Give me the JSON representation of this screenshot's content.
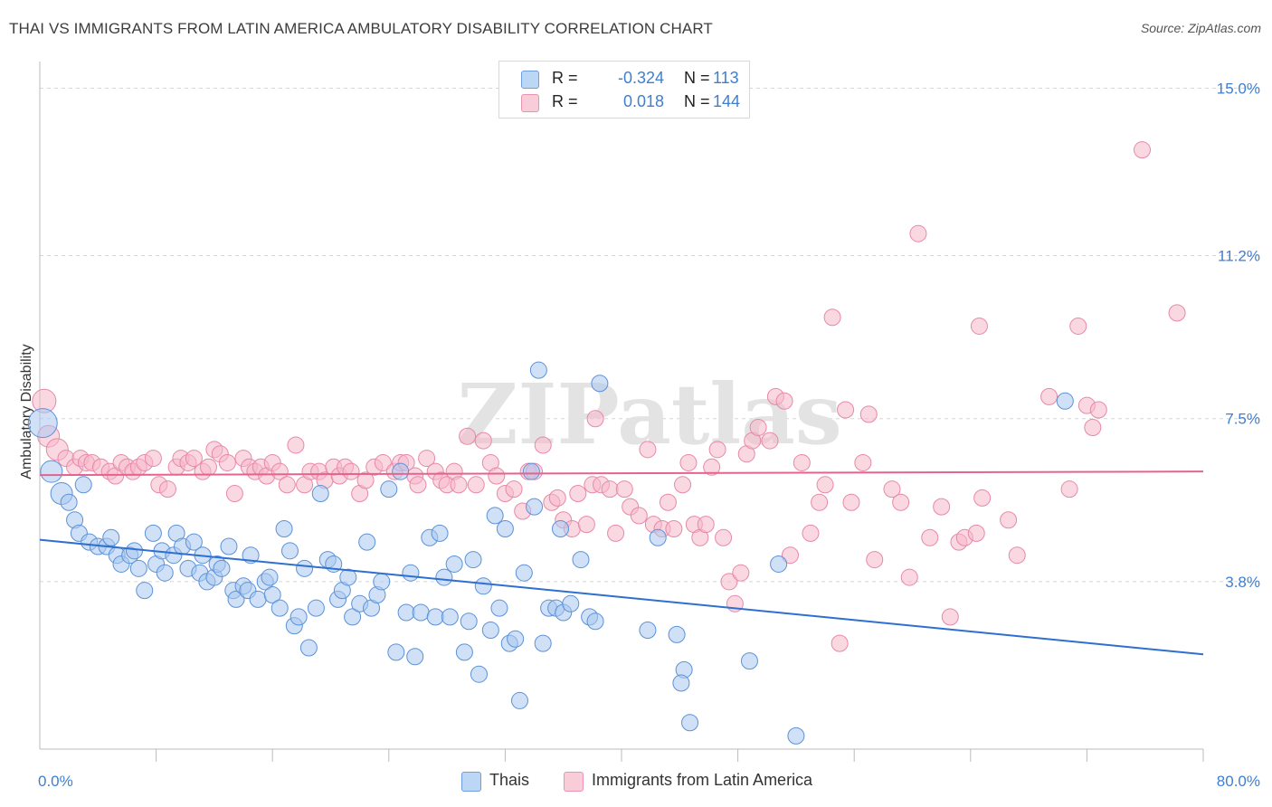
{
  "title": "THAI VS IMMIGRANTS FROM LATIN AMERICA AMBULATORY DISABILITY CORRELATION CHART",
  "source": "Source: ZipAtlas.com",
  "watermark": "ZIPatlas",
  "colors": {
    "thai_fill": "#a9c8f0",
    "thai_stroke": "#5b92d8",
    "thai_line": "#2f6fd0",
    "latin_fill": "#f6b8cb",
    "latin_stroke": "#e888a8",
    "latin_line": "#e5648f",
    "tick_text": "#3f7fd0",
    "grid": "#d6d6d6"
  },
  "legend": {
    "rows": [
      {
        "r_label": "R =",
        "r_value": "-0.324",
        "n_label": "N =",
        "n_value": "113"
      },
      {
        "r_label": "R =",
        "r_value": "0.018",
        "n_label": "N =",
        "n_value": "144"
      }
    ]
  },
  "bottom_legend": {
    "series_a": "Thais",
    "series_b": "Immigrants from Latin America"
  },
  "chart_data": {
    "type": "scatter",
    "xlabel": "",
    "ylabel": "Ambulatory Disability",
    "xlim": [
      0,
      80
    ],
    "ylim": [
      0,
      15.4
    ],
    "x_tick_labels": [
      {
        "value": 0,
        "label": "0.0%"
      },
      {
        "value": 80,
        "label": "80.0%"
      }
    ],
    "x_minor_ticks": [
      8,
      16,
      24,
      32,
      40,
      48,
      56,
      64,
      72,
      80
    ],
    "y_ticks": [
      {
        "value": 3.8,
        "label": "3.8%"
      },
      {
        "value": 7.5,
        "label": "7.5%"
      },
      {
        "value": 11.2,
        "label": "11.2%"
      },
      {
        "value": 15.0,
        "label": "15.0%"
      }
    ],
    "grid": true,
    "series": [
      {
        "name": "Thais",
        "trend": {
          "x": [
            0,
            80
          ],
          "y": [
            4.75,
            2.15
          ]
        },
        "points": [
          [
            0.2,
            7.4
          ],
          [
            0.8,
            6.3
          ],
          [
            1.5,
            5.8
          ],
          [
            2.0,
            5.6
          ],
          [
            3.0,
            6.0
          ],
          [
            2.4,
            5.2
          ],
          [
            2.7,
            4.9
          ],
          [
            3.4,
            4.7
          ],
          [
            4.0,
            4.6
          ],
          [
            4.6,
            4.6
          ],
          [
            4.9,
            4.8
          ],
          [
            5.3,
            4.4
          ],
          [
            5.6,
            4.2
          ],
          [
            6.2,
            4.4
          ],
          [
            6.5,
            4.5
          ],
          [
            6.8,
            4.1
          ],
          [
            7.2,
            3.6
          ],
          [
            7.8,
            4.9
          ],
          [
            8.0,
            4.2
          ],
          [
            8.4,
            4.5
          ],
          [
            8.6,
            4.0
          ],
          [
            9.4,
            4.9
          ],
          [
            9.2,
            4.4
          ],
          [
            9.8,
            4.6
          ],
          [
            10.2,
            4.1
          ],
          [
            10.6,
            4.7
          ],
          [
            11.0,
            4.0
          ],
          [
            11.2,
            4.4
          ],
          [
            11.5,
            3.8
          ],
          [
            12.0,
            3.9
          ],
          [
            12.2,
            4.2
          ],
          [
            12.5,
            4.1
          ],
          [
            13.0,
            4.6
          ],
          [
            13.3,
            3.6
          ],
          [
            13.5,
            3.4
          ],
          [
            14.0,
            3.7
          ],
          [
            14.3,
            3.6
          ],
          [
            14.5,
            4.4
          ],
          [
            15.0,
            3.4
          ],
          [
            15.5,
            3.8
          ],
          [
            15.8,
            3.9
          ],
          [
            16.0,
            3.5
          ],
          [
            16.5,
            3.2
          ],
          [
            16.8,
            5.0
          ],
          [
            17.2,
            4.5
          ],
          [
            17.5,
            2.8
          ],
          [
            17.8,
            3.0
          ],
          [
            18.2,
            4.1
          ],
          [
            18.5,
            2.3
          ],
          [
            19.0,
            3.2
          ],
          [
            19.3,
            5.8
          ],
          [
            19.8,
            4.3
          ],
          [
            20.2,
            4.2
          ],
          [
            20.5,
            3.4
          ],
          [
            20.8,
            3.6
          ],
          [
            21.2,
            3.9
          ],
          [
            21.5,
            3.0
          ],
          [
            22.0,
            3.3
          ],
          [
            22.5,
            4.7
          ],
          [
            22.8,
            3.2
          ],
          [
            23.2,
            3.5
          ],
          [
            23.5,
            3.8
          ],
          [
            24.0,
            5.9
          ],
          [
            24.5,
            2.2
          ],
          [
            24.8,
            6.3
          ],
          [
            25.2,
            3.1
          ],
          [
            25.5,
            4.0
          ],
          [
            25.8,
            2.1
          ],
          [
            26.2,
            3.1
          ],
          [
            26.8,
            4.8
          ],
          [
            27.2,
            3.0
          ],
          [
            27.5,
            4.9
          ],
          [
            27.8,
            3.9
          ],
          [
            28.2,
            3.0
          ],
          [
            28.5,
            4.2
          ],
          [
            29.2,
            2.2
          ],
          [
            29.5,
            2.9
          ],
          [
            29.8,
            4.3
          ],
          [
            30.2,
            1.7
          ],
          [
            30.5,
            3.7
          ],
          [
            31.0,
            2.7
          ],
          [
            31.3,
            5.3
          ],
          [
            31.6,
            3.2
          ],
          [
            32.0,
            5.0
          ],
          [
            32.3,
            2.4
          ],
          [
            32.7,
            2.5
          ],
          [
            33.0,
            1.1
          ],
          [
            33.3,
            4.0
          ],
          [
            33.8,
            6.3
          ],
          [
            34.0,
            5.5
          ],
          [
            34.3,
            8.6
          ],
          [
            34.6,
            2.4
          ],
          [
            35.0,
            3.2
          ],
          [
            35.5,
            3.2
          ],
          [
            35.8,
            5.0
          ],
          [
            36.0,
            3.1
          ],
          [
            36.5,
            3.3
          ],
          [
            37.2,
            4.3
          ],
          [
            37.8,
            3.0
          ],
          [
            38.2,
            2.9
          ],
          [
            38.5,
            8.3
          ],
          [
            41.8,
            2.7
          ],
          [
            42.5,
            4.8
          ],
          [
            43.8,
            2.6
          ],
          [
            44.3,
            1.8
          ],
          [
            44.1,
            1.5
          ],
          [
            44.7,
            0.6
          ],
          [
            48.8,
            2.0
          ],
          [
            52.0,
            0.3
          ],
          [
            50.8,
            4.2
          ],
          [
            70.5,
            7.9
          ]
        ]
      },
      {
        "name": "Immigrants from Latin America",
        "trend": {
          "x": [
            0,
            80
          ],
          "y": [
            6.22,
            6.3
          ]
        },
        "points": [
          [
            0.3,
            7.9
          ],
          [
            0.6,
            7.1
          ],
          [
            1.2,
            6.8
          ],
          [
            1.8,
            6.6
          ],
          [
            2.4,
            6.4
          ],
          [
            2.8,
            6.6
          ],
          [
            3.2,
            6.5
          ],
          [
            3.6,
            6.5
          ],
          [
            4.2,
            6.4
          ],
          [
            4.8,
            6.3
          ],
          [
            5.2,
            6.2
          ],
          [
            5.6,
            6.5
          ],
          [
            6.0,
            6.4
          ],
          [
            6.4,
            6.3
          ],
          [
            6.8,
            6.4
          ],
          [
            7.2,
            6.5
          ],
          [
            7.8,
            6.6
          ],
          [
            8.2,
            6.0
          ],
          [
            8.8,
            5.9
          ],
          [
            9.4,
            6.4
          ],
          [
            9.7,
            6.6
          ],
          [
            10.2,
            6.5
          ],
          [
            10.6,
            6.6
          ],
          [
            11.2,
            6.3
          ],
          [
            11.6,
            6.4
          ],
          [
            12.0,
            6.8
          ],
          [
            12.4,
            6.7
          ],
          [
            12.9,
            6.5
          ],
          [
            13.4,
            5.8
          ],
          [
            14.0,
            6.6
          ],
          [
            14.4,
            6.4
          ],
          [
            14.8,
            6.3
          ],
          [
            15.2,
            6.4
          ],
          [
            15.6,
            6.2
          ],
          [
            16.0,
            6.5
          ],
          [
            16.5,
            6.3
          ],
          [
            17.0,
            6.0
          ],
          [
            17.6,
            6.9
          ],
          [
            18.2,
            6.0
          ],
          [
            18.6,
            6.3
          ],
          [
            19.2,
            6.3
          ],
          [
            19.6,
            6.1
          ],
          [
            20.2,
            6.4
          ],
          [
            20.6,
            6.2
          ],
          [
            21.0,
            6.4
          ],
          [
            21.4,
            6.3
          ],
          [
            22.0,
            5.8
          ],
          [
            22.4,
            6.1
          ],
          [
            23.0,
            6.4
          ],
          [
            23.6,
            6.5
          ],
          [
            24.4,
            6.3
          ],
          [
            24.8,
            6.5
          ],
          [
            25.2,
            6.5
          ],
          [
            25.8,
            6.2
          ],
          [
            26.0,
            6.0
          ],
          [
            26.6,
            6.6
          ],
          [
            27.2,
            6.3
          ],
          [
            27.6,
            6.1
          ],
          [
            28.0,
            6.0
          ],
          [
            28.5,
            6.3
          ],
          [
            28.8,
            6.0
          ],
          [
            29.4,
            7.1
          ],
          [
            30.0,
            6.0
          ],
          [
            30.5,
            7.0
          ],
          [
            31.0,
            6.5
          ],
          [
            31.4,
            6.2
          ],
          [
            32.0,
            5.8
          ],
          [
            32.6,
            5.9
          ],
          [
            33.2,
            5.4
          ],
          [
            33.6,
            6.3
          ],
          [
            34.0,
            6.3
          ],
          [
            34.6,
            6.9
          ],
          [
            35.2,
            5.6
          ],
          [
            35.6,
            5.7
          ],
          [
            36.0,
            5.2
          ],
          [
            36.6,
            5.0
          ],
          [
            37.0,
            5.8
          ],
          [
            37.6,
            5.1
          ],
          [
            38.0,
            6.0
          ],
          [
            38.2,
            7.5
          ],
          [
            38.6,
            6.0
          ],
          [
            39.2,
            5.9
          ],
          [
            39.6,
            4.9
          ],
          [
            40.2,
            5.9
          ],
          [
            40.6,
            5.5
          ],
          [
            41.2,
            5.3
          ],
          [
            41.8,
            6.8
          ],
          [
            42.2,
            5.1
          ],
          [
            42.8,
            5.0
          ],
          [
            43.2,
            5.6
          ],
          [
            43.6,
            5.0
          ],
          [
            44.2,
            6.0
          ],
          [
            44.6,
            6.5
          ],
          [
            45.0,
            5.1
          ],
          [
            45.4,
            4.8
          ],
          [
            45.8,
            5.1
          ],
          [
            46.2,
            6.4
          ],
          [
            46.6,
            6.8
          ],
          [
            47.0,
            4.8
          ],
          [
            47.4,
            3.8
          ],
          [
            47.8,
            3.3
          ],
          [
            48.2,
            4.0
          ],
          [
            48.6,
            6.7
          ],
          [
            49.0,
            7.0
          ],
          [
            49.4,
            7.3
          ],
          [
            50.2,
            7.0
          ],
          [
            50.6,
            8.0
          ],
          [
            51.2,
            7.9
          ],
          [
            51.6,
            4.4
          ],
          [
            52.4,
            6.5
          ],
          [
            53.0,
            4.9
          ],
          [
            53.6,
            5.6
          ],
          [
            54.0,
            6.0
          ],
          [
            54.5,
            9.8
          ],
          [
            55.0,
            2.4
          ],
          [
            55.4,
            7.7
          ],
          [
            55.8,
            5.6
          ],
          [
            56.6,
            6.5
          ],
          [
            57.0,
            7.6
          ],
          [
            57.4,
            4.3
          ],
          [
            58.6,
            5.9
          ],
          [
            59.2,
            5.6
          ],
          [
            59.8,
            3.9
          ],
          [
            60.4,
            11.7
          ],
          [
            61.2,
            4.8
          ],
          [
            62.0,
            5.5
          ],
          [
            62.6,
            3.0
          ],
          [
            63.2,
            4.7
          ],
          [
            63.6,
            4.8
          ],
          [
            64.4,
            4.9
          ],
          [
            64.6,
            9.6
          ],
          [
            64.8,
            5.7
          ],
          [
            66.6,
            5.2
          ],
          [
            67.2,
            4.4
          ],
          [
            69.4,
            8.0
          ],
          [
            70.8,
            5.9
          ],
          [
            71.4,
            9.6
          ],
          [
            72.0,
            7.8
          ],
          [
            72.4,
            7.3
          ],
          [
            72.8,
            7.7
          ],
          [
            75.8,
            13.6
          ],
          [
            78.2,
            9.9
          ]
        ]
      }
    ]
  }
}
